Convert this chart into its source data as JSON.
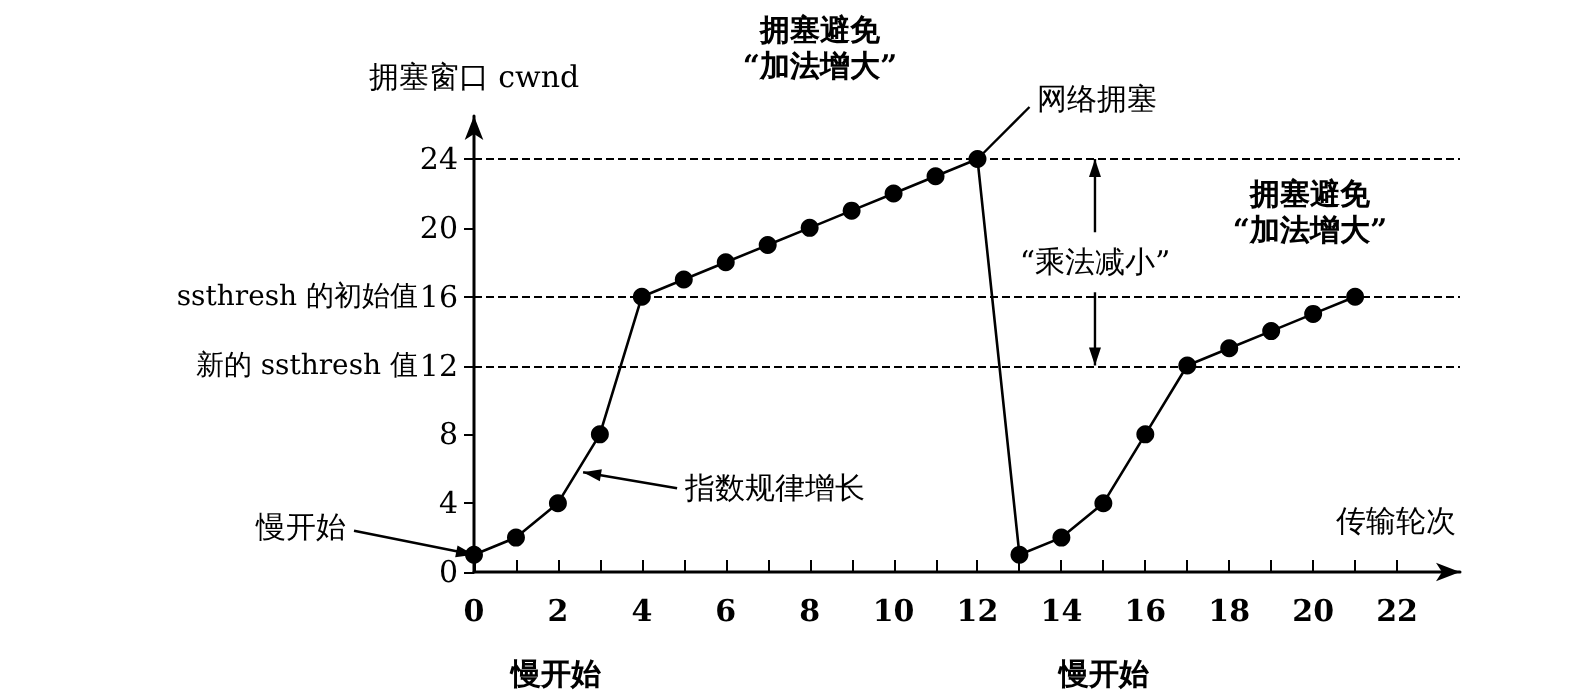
{
  "chart_data": {
    "type": "line",
    "xlabel": "传输轮次",
    "ylabel": "拥塞窗口 cwnd",
    "x": [
      0,
      1,
      2,
      3,
      4,
      5,
      6,
      7,
      8,
      9,
      10,
      11,
      12,
      13,
      14,
      15,
      16,
      17,
      18,
      19,
      20,
      21
    ],
    "series": [
      {
        "color": "#000000",
        "values": [
          1,
          2,
          4,
          8,
          16,
          17,
          18,
          19,
          20,
          21,
          22,
          23,
          24,
          1,
          2,
          4,
          8,
          12,
          13,
          14,
          15,
          16
        ]
      }
    ],
    "xlim": [
      0,
      23.5
    ],
    "xticks": [
      0,
      {
        "value": 1,
        "label": null
      },
      2,
      {
        "value": 3,
        "label": null
      },
      4,
      {
        "value": 5,
        "label": null
      },
      6,
      {
        "value": 7,
        "label": null
      },
      8,
      {
        "value": 9,
        "label": null
      },
      10,
      {
        "value": 11,
        "label": null
      },
      12,
      {
        "value": 13,
        "label": null
      },
      14,
      {
        "value": 15,
        "label": null
      },
      16,
      {
        "value": 17,
        "label": null
      },
      18,
      {
        "value": 19,
        "label": null
      },
      20,
      {
        "value": 21,
        "label": null
      },
      22
    ],
    "ylim": [
      0,
      26.5
    ],
    "yticks": [
      0,
      4,
      8,
      12,
      16,
      20,
      24
    ],
    "marker": "circle",
    "ref_lines": [
      {
        "axis": "y",
        "value": 24,
        "label": null,
        "color": "#000000",
        "line_style": "dashed"
      },
      {
        "axis": "y",
        "value": 16,
        "label": "ssthresh 的初始值",
        "color": "#000000",
        "line_style": "dashed"
      },
      {
        "axis": "y",
        "value": 12,
        "label": "新的 ssthresh 值",
        "color": "#000000",
        "line_style": "dashed"
      }
    ],
    "annotations": [
      "拥塞避免\n“加法增大”",
      "拥塞避免\n“加法增大”",
      {
        "text": "“乘法减小”",
        "x": 14.8,
        "y": 24
      },
      {
        "text": "网络拥塞",
        "x": 12,
        "y": 24
      },
      {
        "text": "指数规律增长",
        "x": 2.6,
        "y": 5.8
      },
      {
        "text": "慢开始",
        "x": 0,
        "y": 1
      },
      "慢开始",
      "慢开始"
    ]
  }
}
